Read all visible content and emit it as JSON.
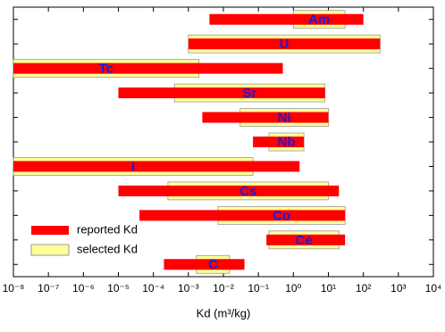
{
  "chart_data": {
    "type": "floating-bar",
    "x_label": "Kd (m³/kg)",
    "categories": [
      "Am",
      "U",
      "Tc",
      "Sr",
      "Ni",
      "Nb",
      "I",
      "Cs",
      "Co",
      "Ce",
      "C"
    ],
    "series": [
      {
        "name": "reported Kd",
        "color": "#ff0000",
        "values": [
          [
            0.004,
            100
          ],
          [
            0.001,
            300
          ],
          [
            1e-08,
            0.5
          ],
          [
            1e-05,
            8
          ],
          [
            0.0025,
            10
          ],
          [
            0.07,
            2
          ],
          [
            1e-08,
            1.5
          ],
          [
            1e-05,
            20
          ],
          [
            4e-05,
            30
          ],
          [
            0.17,
            30
          ],
          [
            0.0002,
            0.04
          ]
        ]
      },
      {
        "name": "selected Kd",
        "color": "#ffff99",
        "values": [
          [
            1,
            30
          ],
          [
            0.001,
            300
          ],
          [
            1e-08,
            0.002
          ],
          [
            0.0004,
            8
          ],
          [
            0.03,
            10
          ],
          [
            0.2,
            2
          ],
          [
            1e-08,
            0.07
          ],
          [
            0.00026,
            10
          ],
          [
            0.007,
            30
          ],
          [
            0.2,
            20
          ],
          [
            0.0017,
            0.015
          ]
        ]
      }
    ],
    "log_x": true,
    "xlim": [
      1e-08,
      10000
    ],
    "xticks": [
      {
        "value": 1e-08,
        "label": "10⁻⁸"
      },
      {
        "value": 1e-07,
        "label": "10⁻⁷"
      },
      {
        "value": 1e-06,
        "label": "10⁻⁶"
      },
      {
        "value": 1e-05,
        "label": "10⁻⁵"
      },
      {
        "value": 0.0001,
        "label": "10⁻⁴"
      },
      {
        "value": 0.001,
        "label": "10⁻³"
      },
      {
        "value": 0.01,
        "label": "10⁻²"
      },
      {
        "value": 0.1,
        "label": "10⁻¹"
      },
      {
        "value": 1,
        "label": "10⁰"
      },
      {
        "value": 10,
        "label": "10¹"
      },
      {
        "value": 100,
        "label": "10²"
      },
      {
        "value": 1000,
        "label": "10³"
      },
      {
        "value": 10000,
        "label": "10⁴"
      }
    ],
    "legend": "lower-left"
  }
}
